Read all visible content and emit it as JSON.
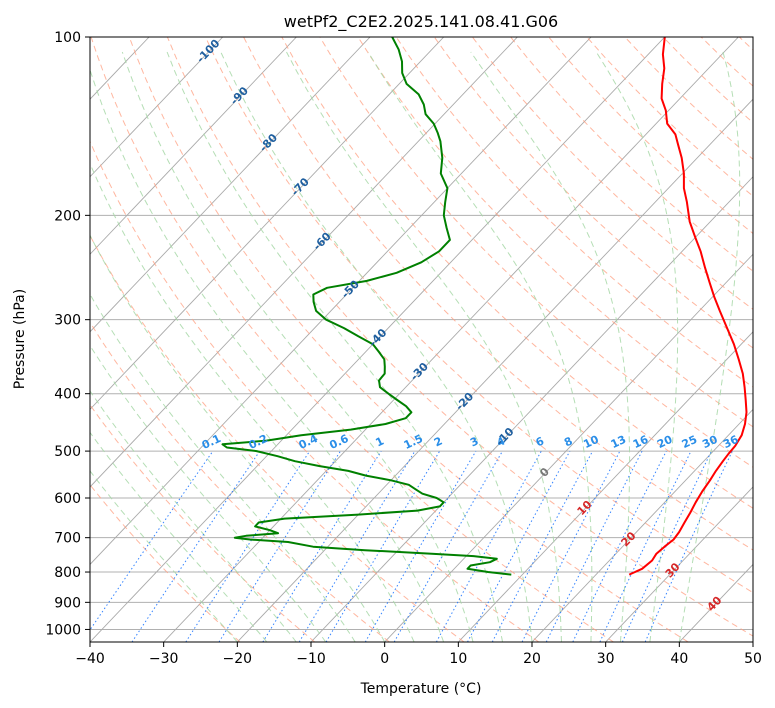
{
  "chart_data": {
    "type": "skew-t",
    "title": "wetPf2_C2E2.2025.141.08.41.G06",
    "xlabel": "Temperature (°C)",
    "ylabel": "Pressure (hPa)",
    "xlim": [
      -40,
      50
    ],
    "ylim": [
      1050,
      100
    ],
    "y_scale": "log",
    "grid": true,
    "x_ticks": [
      "−40",
      "−30",
      "−20",
      "−10",
      "0",
      "10",
      "20",
      "30",
      "40",
      "50"
    ],
    "y_ticks": [
      "1000",
      "900",
      "800",
      "700",
      "600",
      "500",
      "400",
      "300",
      "200",
      "100"
    ],
    "temperature": {
      "color": "#ff0000",
      "pressure": [
        808,
        790,
        765,
        745,
        725,
        705,
        685,
        660,
        635,
        610,
        585,
        560,
        540,
        520,
        505,
        490,
        470,
        450,
        430,
        410,
        390,
        370,
        350,
        330,
        310,
        290,
        275,
        260,
        245,
        230,
        218,
        205,
        190,
        180,
        170,
        160,
        152,
        146,
        140,
        133,
        127,
        120,
        113,
        107,
        100
      ],
      "temp_c": [
        24.5,
        25.5,
        25.8,
        25.5,
        25.7,
        26.0,
        25.8,
        25.3,
        24.8,
        24.2,
        23.7,
        23.3,
        22.9,
        22.6,
        22.4,
        22.3,
        21.8,
        20.8,
        19.5,
        17.8,
        16.0,
        14.0,
        11.6,
        9.0,
        6.0,
        2.8,
        0.3,
        -2.2,
        -4.8,
        -7.5,
        -10.0,
        -12.8,
        -15.7,
        -17.9,
        -19.8,
        -22.1,
        -24.3,
        -26.0,
        -28.5,
        -30.4,
        -32.5,
        -34.3,
        -36.0,
        -38.0,
        -40.0
      ]
    },
    "dewpoint": {
      "color": "#008000",
      "pressure": [
        808,
        800,
        790,
        780,
        770,
        760,
        752,
        745,
        735,
        725,
        712,
        705,
        700,
        695,
        688,
        680,
        670,
        660,
        650,
        640,
        630,
        620,
        610,
        600,
        590,
        580,
        570,
        560,
        550,
        540,
        530,
        520,
        510,
        500,
        493,
        487,
        480,
        470,
        460,
        450,
        440,
        430,
        420,
        410,
        400,
        390,
        380,
        370,
        360,
        350,
        340,
        330,
        320,
        310,
        300,
        290,
        280,
        272,
        265,
        258,
        250,
        240,
        230,
        220,
        210,
        200,
        190,
        180,
        170,
        160,
        150,
        145,
        140,
        135,
        130,
        125,
        120,
        115,
        110,
        105,
        100
      ],
      "temp_c": [
        8.5,
        5.0,
        1.8,
        1.8,
        4.0,
        4.5,
        1.0,
        -5.0,
        -14.5,
        -22.0,
        -26.0,
        -31.5,
        -33.8,
        -32.5,
        -28.5,
        -30.0,
        -32.5,
        -32.5,
        -29.5,
        -20.0,
        -12.5,
        -10.0,
        -10.0,
        -11.5,
        -14.0,
        -15.5,
        -17.0,
        -20.0,
        -24.0,
        -27.0,
        -31.5,
        -35.5,
        -38.5,
        -42.0,
        -46.5,
        -47.5,
        -42.0,
        -38.0,
        -32.0,
        -28.0,
        -26.0,
        -26.0,
        -27.5,
        -29.5,
        -31.5,
        -33.5,
        -34.5,
        -34.6,
        -35.5,
        -36.5,
        -38.2,
        -40.0,
        -43.0,
        -46.0,
        -49.5,
        -52.0,
        -53.5,
        -54.5,
        -53.5,
        -49.0,
        -46.0,
        -44.0,
        -43.0,
        -43.0,
        -45.0,
        -47.0,
        -48.5,
        -50.0,
        -52.8,
        -54.6,
        -57.0,
        -58.5,
        -60.2,
        -62.5,
        -64.0,
        -66.0,
        -69.0,
        -71.0,
        -72.5,
        -74.5,
        -77.0
      ]
    },
    "mixing_ratio_labels": [
      "0.1",
      "0.2",
      "0.4",
      "0.6",
      "1",
      "1.5",
      "2",
      "3",
      "4",
      "6",
      "8",
      "10",
      "13",
      "16",
      "20",
      "25",
      "30",
      "36"
    ],
    "isotherm_labels": [
      "-100",
      "-90",
      "-80",
      "-70",
      "-60",
      "-50",
      "-40",
      "-30",
      "-20",
      "-10",
      "0",
      "10",
      "20",
      "30",
      "40"
    ],
    "colors": {
      "isotherm": "#aaaaaa",
      "dry_adiabat": "#ff9f80",
      "moist_adiabat": "#a8d8a8",
      "mixing_ratio": "#1f77ff",
      "label_cold": "#1f5f9f",
      "label_warm": "#d62728",
      "label_mixing": "#2a8ee8"
    }
  }
}
